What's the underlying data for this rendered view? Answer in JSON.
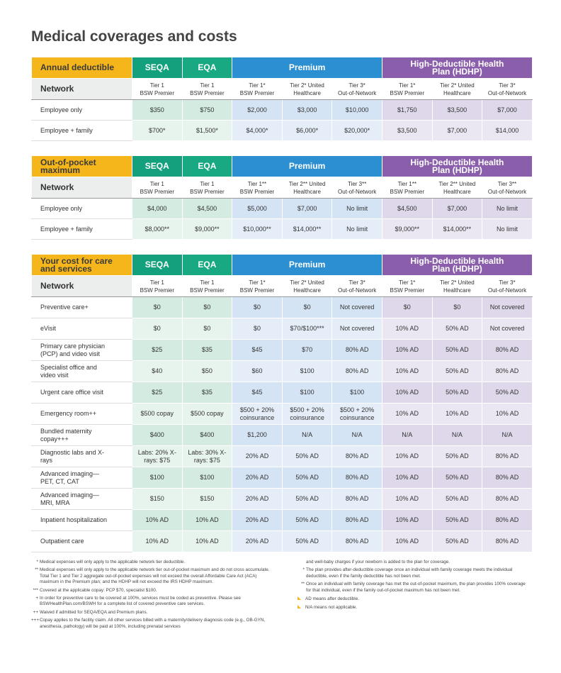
{
  "title": "Medical coverages and costs",
  "tables": [
    {
      "heading": "Annual deductible",
      "network_label": "Network",
      "groups": [
        {
          "name": "SEQA",
          "networks": [
            {
              "tier": "Tier 1",
              "name": "BSW Premier"
            }
          ]
        },
        {
          "name": "EQA",
          "networks": [
            {
              "tier": "Tier 1",
              "name": "BSW Premier"
            }
          ]
        },
        {
          "name": "Premium",
          "networks": [
            {
              "tier": "Tier 1*",
              "name": "BSW Premier"
            },
            {
              "tier": "Tier 2* United",
              "name": "Healthcare"
            },
            {
              "tier": "Tier 3*",
              "name": "Out-of-Network"
            }
          ]
        },
        {
          "name": "High-Deductible Health Plan (HDHP)",
          "networks": [
            {
              "tier": "Tier 1*",
              "name": "BSW Premier"
            },
            {
              "tier": "Tier 2* United",
              "name": "Healthcare"
            },
            {
              "tier": "Tier 3*",
              "name": "Out-of-Network"
            }
          ]
        }
      ],
      "rows": [
        {
          "label": "Employee only",
          "cells": [
            "$350",
            "$750",
            "$2,000",
            "$3,000",
            "$10,000",
            "$1,750",
            "$3,500",
            "$7,000"
          ]
        },
        {
          "label": "Employee + family",
          "cells": [
            "$700*",
            "$1,500*",
            "$4,000*",
            "$6,000*",
            "$20,000*",
            "$3,500",
            "$7,000",
            "$14,000"
          ]
        }
      ]
    },
    {
      "heading": "Out-of-pocket maximum",
      "network_label": "Network",
      "groups": [
        {
          "name": "SEQA",
          "networks": [
            {
              "tier": "Tier 1",
              "name": "BSW Premier"
            }
          ]
        },
        {
          "name": "EQA",
          "networks": [
            {
              "tier": "Tier 1",
              "name": "BSW Premier"
            }
          ]
        },
        {
          "name": "Premium",
          "networks": [
            {
              "tier": "Tier 1**",
              "name": "BSW Premier"
            },
            {
              "tier": "Tier 2** United",
              "name": "Healthcare"
            },
            {
              "tier": "Tier 3**",
              "name": "Out-of-Network"
            }
          ]
        },
        {
          "name": "High-Deductible Health Plan (HDHP)",
          "networks": [
            {
              "tier": "Tier 1**",
              "name": "BSW Premier"
            },
            {
              "tier": "Tier 2** United",
              "name": "Healthcare"
            },
            {
              "tier": "Tier 3**",
              "name": "Out-of-Network"
            }
          ]
        }
      ],
      "rows": [
        {
          "label": "Employee only",
          "cells": [
            "$4,000",
            "$4,500",
            "$5,000",
            "$7,000",
            "No limit",
            "$4,500",
            "$7,000",
            "No limit"
          ]
        },
        {
          "label": "Employee + family",
          "cells": [
            "$8,000**",
            "$9,000**",
            "$10,000**",
            "$14,000**",
            "No limit",
            "$9,000**",
            "$14,000**",
            "No limit"
          ]
        }
      ]
    },
    {
      "heading": "Your cost for care and services",
      "network_label": "Network",
      "groups": [
        {
          "name": "SEQA",
          "networks": [
            {
              "tier": "Tier 1",
              "name": "BSW Premier"
            }
          ]
        },
        {
          "name": "EQA",
          "networks": [
            {
              "tier": "Tier 1",
              "name": "BSW Premier"
            }
          ]
        },
        {
          "name": "Premium",
          "networks": [
            {
              "tier": "Tier 1*",
              "name": "BSW Premier"
            },
            {
              "tier": "Tier 2* United",
              "name": "Healthcare"
            },
            {
              "tier": "Tier 3*",
              "name": "Out-of-Network"
            }
          ]
        },
        {
          "name": "High-Deductible Health Plan (HDHP)",
          "networks": [
            {
              "tier": "Tier 1*",
              "name": "BSW Premier"
            },
            {
              "tier": "Tier 2* United",
              "name": "Healthcare"
            },
            {
              "tier": "Tier 3*",
              "name": "Out-of-Network"
            }
          ]
        }
      ],
      "rows": [
        {
          "label": "Preventive care+",
          "cells": [
            "$0",
            "$0",
            "$0",
            "$0",
            "Not covered",
            "$0",
            "$0",
            "Not covered"
          ]
        },
        {
          "label": "eVisit",
          "cells": [
            "$0",
            "$0",
            "$0",
            "$70/$100***",
            "Not covered",
            "10% AD",
            "50% AD",
            "Not covered"
          ]
        },
        {
          "label": "Primary care physician (PCP) and video visit",
          "cells": [
            "$25",
            "$35",
            "$45",
            "$70",
            "80% AD",
            "10% AD",
            "50% AD",
            "80% AD"
          ]
        },
        {
          "label": "Specialist office and video visit",
          "cells": [
            "$40",
            "$50",
            "$60",
            "$100",
            "80% AD",
            "10% AD",
            "50% AD",
            "80% AD"
          ]
        },
        {
          "label": "Urgent care office visit",
          "cells": [
            "$25",
            "$35",
            "$45",
            "$100",
            "$100",
            "10% AD",
            "50% AD",
            "50% AD"
          ]
        },
        {
          "label": "Emergency room++",
          "cells": [
            "$500 copay",
            "$500 copay",
            "$500 + 20% coinsurance",
            "$500 + 20% coinsurance",
            "$500 + 20% coinsurance",
            "10% AD",
            "10% AD",
            "10% AD"
          ]
        },
        {
          "label": "Bundled maternity copay+++",
          "cells": [
            "$400",
            "$400",
            "$1,200",
            "N/A",
            "N/A",
            "N/A",
            "N/A",
            "N/A"
          ]
        },
        {
          "label": "Diagnostic labs and X-rays",
          "cells": [
            "Labs: 20% X-rays: $75",
            "Labs: 30% X-rays: $75",
            "20% AD",
            "50% AD",
            "80% AD",
            "10% AD",
            "50% AD",
            "80% AD"
          ]
        },
        {
          "label": "Advanced imaging— PET, CT, CAT",
          "cells": [
            "$100",
            "$100",
            "20% AD",
            "50% AD",
            "80% AD",
            "10% AD",
            "50% AD",
            "80% AD"
          ]
        },
        {
          "label": "Advanced imaging— MRI, MRA",
          "cells": [
            "$150",
            "$150",
            "20% AD",
            "50% AD",
            "80% AD",
            "10% AD",
            "50% AD",
            "80% AD"
          ]
        },
        {
          "label": "Inpatient hospitalization",
          "cells": [
            "10% AD",
            "10% AD",
            "20% AD",
            "50% AD",
            "80% AD",
            "10% AD",
            "50% AD",
            "80% AD"
          ]
        },
        {
          "label": "Outpatient care",
          "cells": [
            "10% AD",
            "10% AD",
            "20% AD",
            "50% AD",
            "80% AD",
            "10% AD",
            "50% AD",
            "80% AD"
          ]
        }
      ]
    }
  ],
  "footnotes_left": [
    {
      "mark": "*",
      "text": "Medical expenses will only apply to the applicable network tier deductible."
    },
    {
      "mark": "**",
      "text": "Medical expenses will only apply to the applicable network tier out-of-pocket maximum and do not cross accumulate. Total Tier 1 and Tier 2 aggregate out-of-pocket expenses will not exceed the overall Affordable Care Act (ACA) maximum in the Premium plan; and the HDHP will not exceed the IRS HDHP maximum."
    },
    {
      "mark": "***",
      "text": "Covered at the applicable copay: PCP $70, specialist $100."
    },
    {
      "mark": "+",
      "text": "In order for preventive care to be covered at 100%, services must be coded as preventive. Please see BSWHealthPlan.com/BSWH for a complete list of covered preventive care services."
    },
    {
      "mark": "++",
      "text": "Waived if admitted for SEQA/EQA and Premium plans."
    },
    {
      "mark": "+++",
      "text": "Copay applies to the facility claim. All other services billed with a maternity/delivery diagnosis code (e.g., OB-GYN, anesthesia, pathology) will be paid at 100%, including prenatal services"
    }
  ],
  "footnotes_right": [
    {
      "text": "and well-baby charges if your newborn is added to the plan for coverage."
    },
    {
      "mark": "*",
      "text": "The plan provides after-deductible coverage once an individual with family coverage meets the individual deductible, even if the family deductible has not been met."
    },
    {
      "mark": "**",
      "text": "Once an individual with family coverage has met the out-of-pocket maximum, the plan provides 100% coverage for that individual, even if the family out-of-pocket maximum has not been met."
    }
  ],
  "legend_notes": [
    "AD means after deductible.",
    "N/A means not applicable."
  ]
}
